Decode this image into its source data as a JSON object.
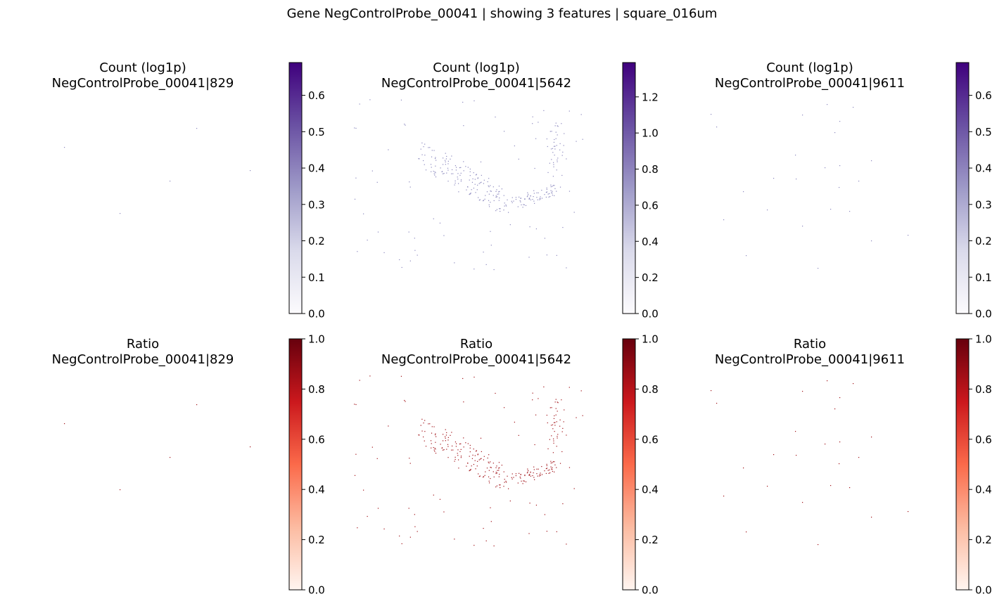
{
  "figure": {
    "suptitle": "Gene NegControlProbe_00041 | showing 3 features | square_016um"
  },
  "chart_data": [
    {
      "type": "scatter",
      "panel": "count-829",
      "title_line1": "Count (log1p)",
      "title_line2": "NegControlProbe_00041|829",
      "colormap": "Purples",
      "colorbar": {
        "min": 0.0,
        "max": 0.69,
        "ticks": [
          "0.0",
          "0.1",
          "0.2",
          "0.3",
          "0.4",
          "0.5",
          "0.6"
        ]
      }
    },
    {
      "type": "scatter",
      "panel": "count-5642",
      "title_line1": "Count (log1p)",
      "title_line2": "NegControlProbe_00041|5642",
      "colormap": "Purples",
      "colorbar": {
        "min": 0.0,
        "max": 1.39,
        "ticks": [
          "0.0",
          "0.2",
          "0.4",
          "0.6",
          "0.8",
          "1.0",
          "1.2"
        ]
      }
    },
    {
      "type": "scatter",
      "panel": "count-9611",
      "title_line1": "Count (log1p)",
      "title_line2": "NegControlProbe_00041|9611",
      "colormap": "Purples",
      "colorbar": {
        "min": 0.0,
        "max": 0.69,
        "ticks": [
          "0.0",
          "0.1",
          "0.2",
          "0.3",
          "0.4",
          "0.5",
          "0.6"
        ]
      }
    },
    {
      "type": "scatter",
      "panel": "ratio-829",
      "title_line1": "Ratio",
      "title_line2": "NegControlProbe_00041|829",
      "colormap": "Reds",
      "colorbar": {
        "min": 0.0,
        "max": 1.0,
        "ticks": [
          "0.0",
          "0.2",
          "0.4",
          "0.6",
          "0.8",
          "1.0"
        ]
      }
    },
    {
      "type": "scatter",
      "panel": "ratio-5642",
      "title_line1": "Ratio",
      "title_line2": "NegControlProbe_00041|5642",
      "colormap": "Reds",
      "colorbar": {
        "min": 0.0,
        "max": 1.0,
        "ticks": [
          "0.0",
          "0.2",
          "0.4",
          "0.6",
          "0.8",
          "1.0"
        ]
      }
    },
    {
      "type": "scatter",
      "panel": "ratio-9611",
      "title_line1": "Ratio",
      "title_line2": "NegControlProbe_00041|9611",
      "colormap": "Reds",
      "colorbar": {
        "min": 0.0,
        "max": 1.0,
        "ticks": [
          "0.0",
          "0.2",
          "0.4",
          "0.6",
          "0.8",
          "1.0"
        ]
      }
    }
  ],
  "colors": {
    "purples_low": "#fcfbfd",
    "purples_mid": "#9e9ac8",
    "purples_high": "#3f007d",
    "reds_low": "#fff5f0",
    "reds_mid": "#fb6a4a",
    "reds_high": "#67000d"
  }
}
